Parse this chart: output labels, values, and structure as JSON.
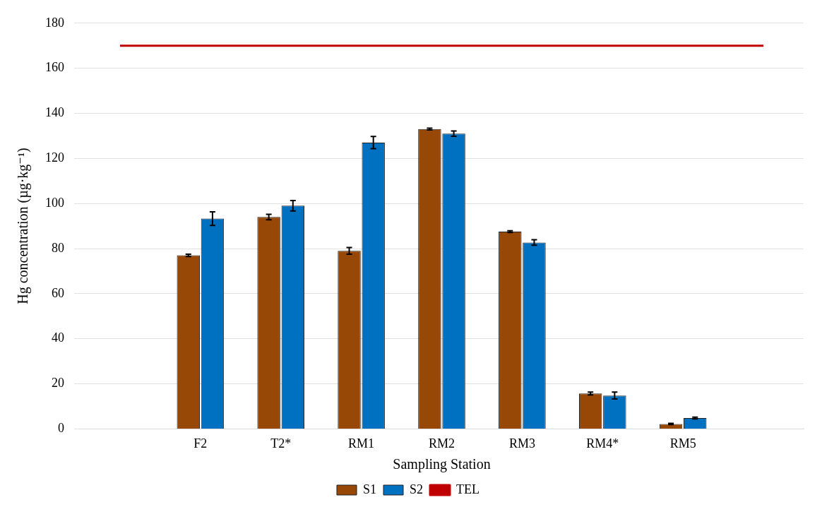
{
  "chart_data": {
    "type": "bar",
    "xlabel": "Sampling Station",
    "ylabel": "Hg concentration (µg·kg⁻¹)",
    "categories": [
      null,
      "F2",
      "T2*",
      "RM1",
      "RM2",
      "RM3",
      "RM4*",
      "RM5",
      null
    ],
    "series": [
      {
        "name": "S1",
        "color": "#974706",
        "values": [
          null,
          77,
          94,
          79,
          133,
          87.5,
          15.7,
          2.2,
          null
        ],
        "errors": [
          null,
          0.5,
          1.2,
          1.5,
          0.4,
          0.4,
          0.6,
          0.3,
          null
        ]
      },
      {
        "name": "S2",
        "color": "#0070c0",
        "values": [
          null,
          93.3,
          99,
          127,
          131,
          82.7,
          14.8,
          4.8,
          null
        ],
        "errors": [
          null,
          3,
          2.3,
          2.7,
          1.2,
          1.2,
          1.5,
          0.4,
          null
        ]
      },
      {
        "name": "TEL",
        "type": "line",
        "color": "#c00000",
        "values": [
          170,
          170,
          170,
          170,
          170,
          170,
          170,
          170,
          170
        ]
      }
    ],
    "ylim": [
      0,
      180
    ],
    "yticks": [
      0,
      20,
      40,
      60,
      80,
      100,
      120,
      140,
      160,
      180
    ],
    "grid": "y",
    "legend": "bottom",
    "marker": "none"
  }
}
